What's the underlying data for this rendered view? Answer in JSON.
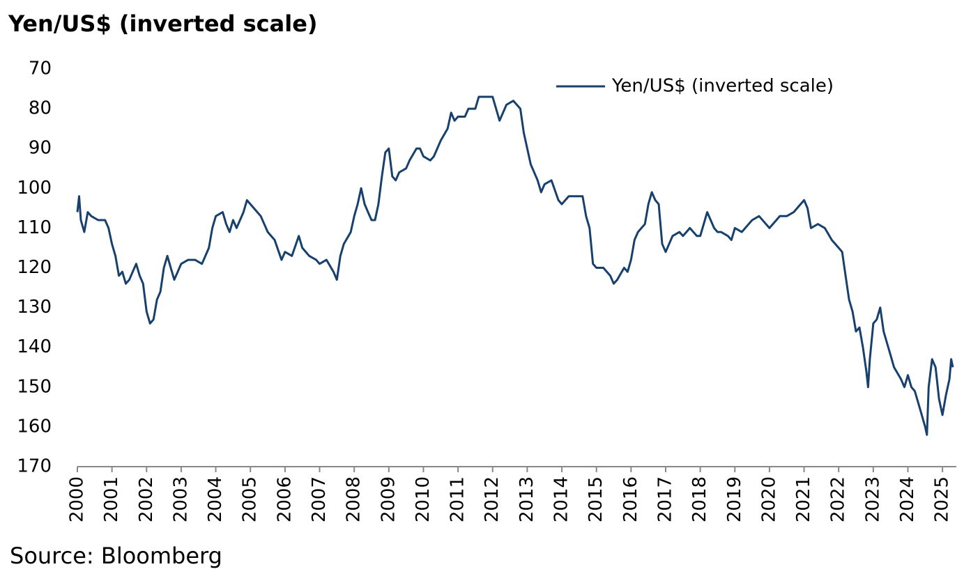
{
  "chart_data": {
    "type": "line",
    "title": "Yen/US$ (inverted scale)",
    "source": "Source: Bloomberg",
    "x": [
      2000.0,
      2000.05,
      2000.1,
      2000.2,
      2000.3,
      2000.4,
      2000.6,
      2000.8,
      2000.9,
      2001.0,
      2001.1,
      2001.2,
      2001.3,
      2001.4,
      2001.5,
      2001.6,
      2001.7,
      2001.8,
      2001.9,
      2002.0,
      2002.1,
      2002.2,
      2002.3,
      2002.4,
      2002.5,
      2002.6,
      2002.7,
      2002.8,
      2002.9,
      2003.0,
      2003.2,
      2003.4,
      2003.6,
      2003.8,
      2003.9,
      2004.0,
      2004.2,
      2004.3,
      2004.4,
      2004.5,
      2004.6,
      2004.8,
      2004.9,
      2005.0,
      2005.1,
      2005.3,
      2005.5,
      2005.7,
      2005.9,
      2006.0,
      2006.2,
      2006.4,
      2006.5,
      2006.7,
      2006.9,
      2007.0,
      2007.2,
      2007.4,
      2007.5,
      2007.6,
      2007.7,
      2007.9,
      2008.0,
      2008.1,
      2008.2,
      2008.3,
      2008.4,
      2008.5,
      2008.6,
      2008.7,
      2008.8,
      2008.9,
      2009.0,
      2009.1,
      2009.2,
      2009.3,
      2009.5,
      2009.6,
      2009.8,
      2009.9,
      2010.0,
      2010.2,
      2010.3,
      2010.5,
      2010.7,
      2010.8,
      2010.9,
      2011.0,
      2011.2,
      2011.3,
      2011.5,
      2011.6,
      2011.8,
      2012.0,
      2012.1,
      2012.2,
      2012.4,
      2012.6,
      2012.8,
      2012.9,
      2013.0,
      2013.1,
      2013.3,
      2013.4,
      2013.5,
      2013.7,
      2013.9,
      2014.0,
      2014.2,
      2014.4,
      2014.6,
      2014.7,
      2014.8,
      2014.9,
      2015.0,
      2015.2,
      2015.4,
      2015.5,
      2015.6,
      2015.8,
      2015.9,
      2016.0,
      2016.1,
      2016.2,
      2016.4,
      2016.5,
      2016.6,
      2016.7,
      2016.8,
      2016.9,
      2017.0,
      2017.2,
      2017.4,
      2017.5,
      2017.6,
      2017.7,
      2017.9,
      2018.0,
      2018.1,
      2018.2,
      2018.4,
      2018.5,
      2018.6,
      2018.8,
      2018.9,
      2019.0,
      2019.2,
      2019.4,
      2019.5,
      2019.7,
      2019.9,
      2020.0,
      2020.2,
      2020.3,
      2020.5,
      2020.7,
      2020.9,
      2021.0,
      2021.1,
      2021.2,
      2021.4,
      2021.6,
      2021.8,
      2022.0,
      2022.1,
      2022.2,
      2022.3,
      2022.4,
      2022.5,
      2022.6,
      2022.7,
      2022.8,
      2022.85,
      2022.9,
      2023.0,
      2023.1,
      2023.2,
      2023.3,
      2023.4,
      2023.5,
      2023.6,
      2023.8,
      2023.9,
      2024.0,
      2024.1,
      2024.2,
      2024.3,
      2024.4,
      2024.5,
      2024.55,
      2024.6,
      2024.7,
      2024.8,
      2024.9,
      2025.0,
      2025.1,
      2025.2,
      2025.25,
      2025.3
    ],
    "series": [
      {
        "name": "Yen/US$ (inverted scale)",
        "color": "#17406d",
        "values": [
          106,
          102,
          108,
          111,
          106,
          107,
          108,
          108,
          110,
          114,
          117,
          122,
          121,
          124,
          123,
          121,
          119,
          122,
          124,
          131,
          134,
          133,
          128,
          126,
          120,
          117,
          120,
          123,
          121,
          119,
          118,
          118,
          119,
          115,
          110,
          107,
          106,
          109,
          111,
          108,
          110,
          106,
          103,
          104,
          105,
          107,
          111,
          113,
          118,
          116,
          117,
          112,
          115,
          117,
          118,
          119,
          118,
          121,
          123,
          117,
          114,
          111,
          107,
          104,
          100,
          104,
          106,
          108,
          108,
          104,
          97,
          91,
          90,
          97,
          98,
          96,
          95,
          93,
          90,
          90,
          92,
          93,
          92,
          88,
          85,
          81,
          83,
          82,
          82,
          80,
          80,
          77,
          77,
          77,
          80,
          83,
          79,
          78,
          80,
          86,
          90,
          94,
          98,
          101,
          99,
          98,
          103,
          104,
          102,
          102,
          102,
          107,
          110,
          119,
          120,
          120,
          122,
          124,
          123,
          120,
          121,
          118,
          113,
          111,
          109,
          104,
          101,
          103,
          104,
          114,
          116,
          112,
          111,
          112,
          111,
          110,
          112,
          112,
          109,
          106,
          110,
          111,
          111,
          112,
          113,
          110,
          111,
          109,
          108,
          107,
          109,
          110,
          108,
          107,
          107,
          106,
          104,
          103,
          105,
          110,
          109,
          110,
          113,
          115,
          116,
          122,
          128,
          131,
          136,
          135,
          140,
          146,
          150,
          143,
          134,
          133,
          130,
          136,
          139,
          142,
          145,
          148,
          150,
          147,
          150,
          151,
          154,
          157,
          160,
          162,
          150,
          143,
          145,
          153,
          157,
          152,
          148,
          143,
          145
        ]
      }
    ],
    "xlim": [
      2000,
      2025.4
    ],
    "xticks": [
      2000,
      2001,
      2002,
      2003,
      2004,
      2005,
      2006,
      2007,
      2008,
      2009,
      2010,
      2011,
      2012,
      2013,
      2014,
      2015,
      2016,
      2017,
      2018,
      2019,
      2020,
      2021,
      2022,
      2023,
      2024,
      2025
    ],
    "ylim": [
      70,
      170
    ],
    "yticks": [
      70,
      80,
      90,
      100,
      110,
      120,
      130,
      140,
      150,
      160,
      170
    ],
    "inverted": true,
    "grid": false,
    "legend": "upper right"
  }
}
